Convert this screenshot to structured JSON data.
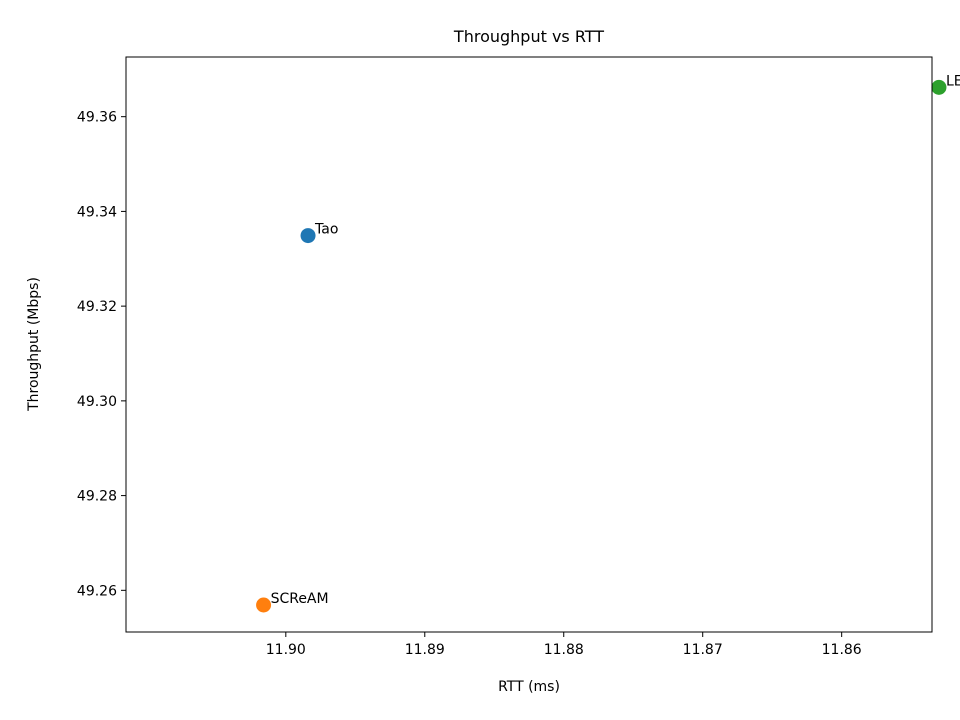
{
  "chart_data": {
    "type": "scatter",
    "title": "Throughput vs RTT",
    "xlabel": "RTT (ms)",
    "ylabel": "Throughput (Mbps)",
    "xlim": [
      11.9115,
      11.8535
    ],
    "ylim": [
      49.2512,
      49.3726
    ],
    "x_inverted": true,
    "x_ticks": [
      11.9,
      11.89,
      11.88,
      11.87,
      11.86
    ],
    "x_tick_labels": [
      "11.90",
      "11.89",
      "11.88",
      "11.87",
      "11.86"
    ],
    "y_ticks": [
      49.26,
      49.28,
      49.3,
      49.32,
      49.34,
      49.36
    ],
    "y_tick_labels": [
      "49.26",
      "49.28",
      "49.30",
      "49.32",
      "49.34",
      "49.36"
    ],
    "grid": false,
    "points": [
      {
        "label": "Tao",
        "x": 11.8984,
        "y": 49.3349,
        "color": "#1f77b4"
      },
      {
        "label": "SCReAM",
        "x": 11.9016,
        "y": 49.2569,
        "color": "#ff7f0e"
      },
      {
        "label": "LEDBAT",
        "x": 11.853,
        "y": 49.3662,
        "color": "#2ca02c"
      }
    ]
  }
}
